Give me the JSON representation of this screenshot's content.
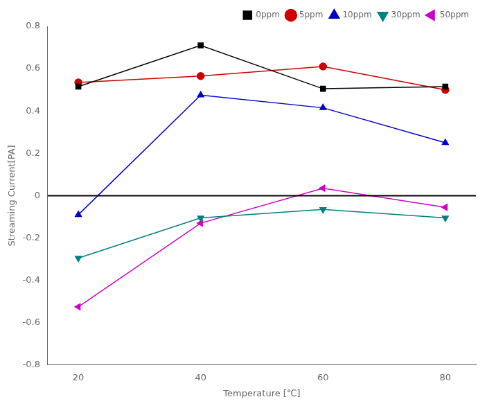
{
  "chart_data": {
    "type": "line",
    "xlabel": "Temperature [℃]",
    "ylabel": "Streaming Current[PA]",
    "x": [
      20,
      40,
      60,
      80
    ],
    "series": [
      {
        "name": "0ppm",
        "color": "#000000",
        "marker": "square",
        "line_style": "solid",
        "values": [
          0.515,
          0.71,
          0.505,
          0.515
        ]
      },
      {
        "name": "5ppm",
        "color": "#cc0000",
        "marker": "circle",
        "line_style": "solid",
        "values": [
          0.535,
          0.565,
          0.61,
          0.5
        ]
      },
      {
        "name": "10ppm",
        "color": "#0000cc",
        "marker": "triangle-up",
        "line_style": "solid",
        "values": [
          -0.09,
          0.475,
          0.415,
          0.25
        ]
      },
      {
        "name": "30ppm",
        "color": "#008080",
        "marker": "triangle-down",
        "line_style": "solid",
        "values": [
          -0.295,
          -0.105,
          -0.065,
          -0.105
        ]
      },
      {
        "name": "50ppm",
        "color": "#cc00cc",
        "marker": "triangle-left",
        "line_style": "solid",
        "values": [
          -0.525,
          -0.13,
          0.035,
          -0.055
        ]
      }
    ],
    "xlim": [
      15,
      85
    ],
    "xticks": [
      20,
      40,
      60,
      80
    ],
    "ylim": [
      -0.8,
      0.8
    ],
    "yticks": [
      -0.8,
      -0.6,
      -0.4,
      -0.2,
      0,
      0.2,
      0.4,
      0.6,
      0.8
    ],
    "grid": false,
    "legend": "upper right"
  }
}
